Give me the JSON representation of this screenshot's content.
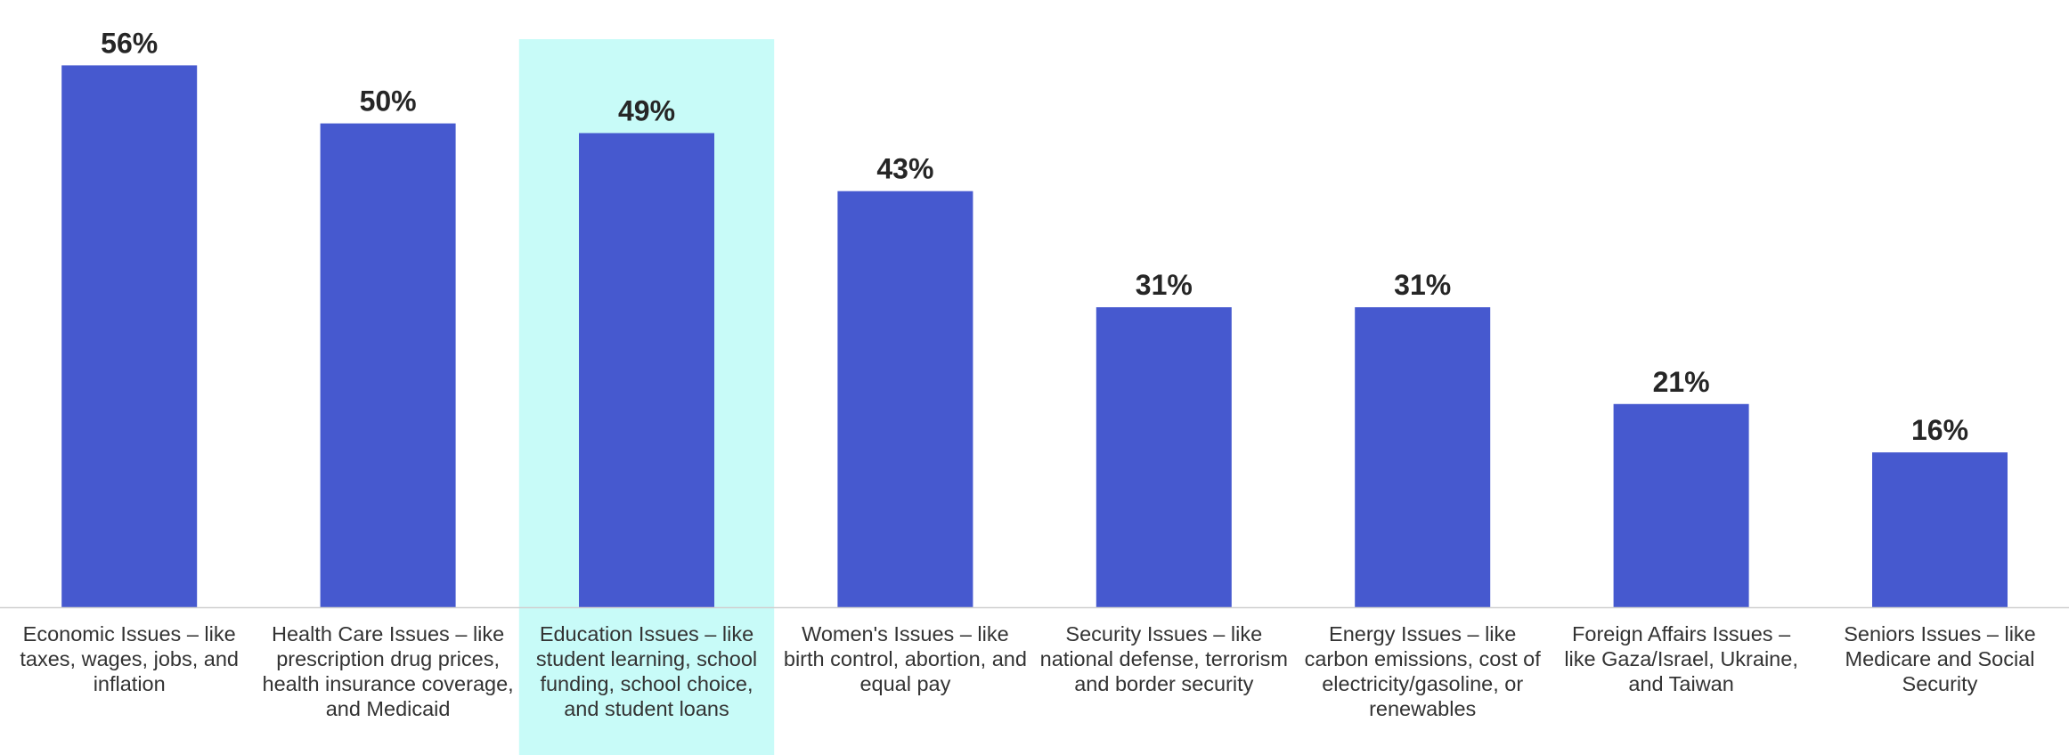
{
  "chart_data": {
    "type": "bar",
    "categories": [
      [
        "Economic Issues – like",
        "taxes, wages, jobs, and",
        "inflation"
      ],
      [
        "Health Care Issues – like",
        "prescription drug prices,",
        "health insurance coverage,",
        "and Medicaid"
      ],
      [
        "Education Issues – like",
        "student learning, school",
        "funding, school choice,",
        "and student loans"
      ],
      [
        "Women's Issues – like",
        "birth control, abortion, and",
        "equal pay"
      ],
      [
        "Security Issues – like",
        "national defense, terrorism",
        "and border security"
      ],
      [
        "Energy Issues – like",
        "carbon emissions, cost of",
        "electricity/gasoline, or",
        "renewables"
      ],
      [
        "Foreign Affairs Issues –",
        "like Gaza/Israel, Ukraine,",
        "and Taiwan"
      ],
      [
        "Seniors Issues – like",
        "Medicare and Social",
        "Security"
      ]
    ],
    "values": [
      56,
      50,
      49,
      43,
      31,
      31,
      21,
      16
    ],
    "value_labels": [
      "56%",
      "50%",
      "49%",
      "43%",
      "31%",
      "31%",
      "21%",
      "16%"
    ],
    "ylim": [
      0,
      60
    ],
    "grid": false,
    "highlighted_category_index": 2,
    "colors": {
      "bar": "#4659CF",
      "highlight": "#C8FBF8",
      "axis": "#D0D0D0",
      "value_text": "#262626",
      "label_text": "#333333"
    }
  }
}
